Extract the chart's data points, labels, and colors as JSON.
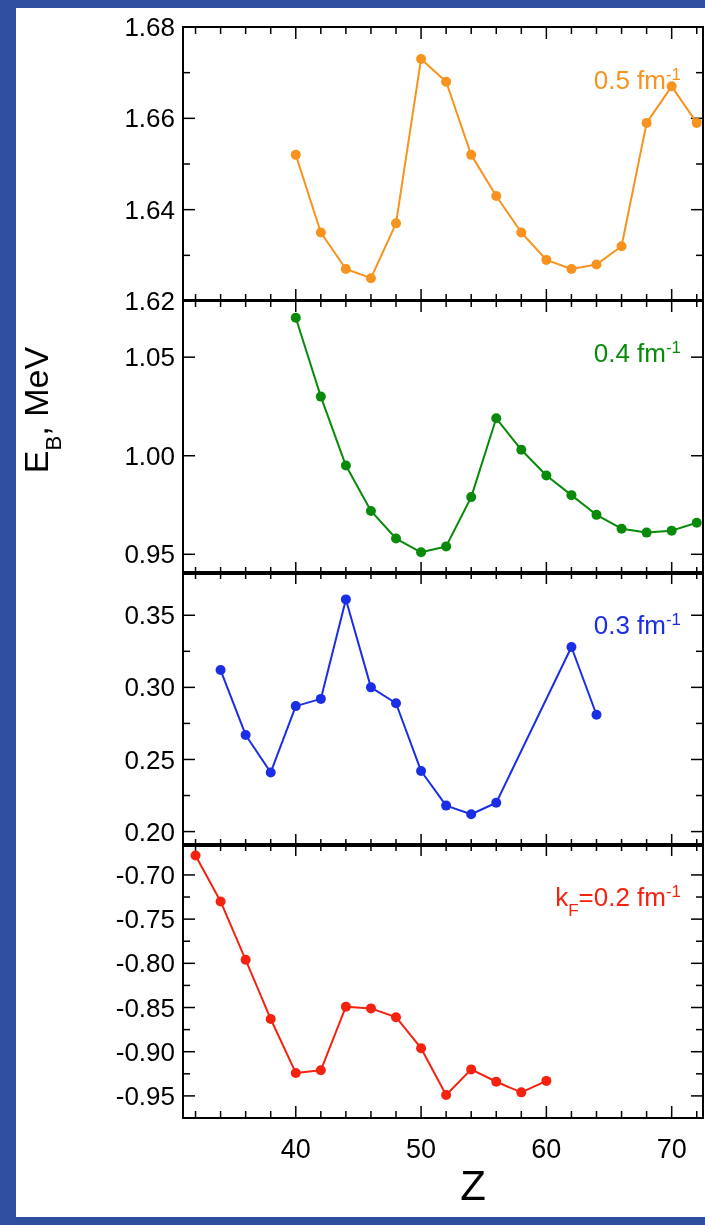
{
  "chart_data": [
    {
      "type": "line",
      "marker": "circle",
      "tick_labels": "y",
      "xlim": [
        31,
        72.5
      ],
      "ylim": [
        1.62,
        1.68
      ],
      "xticks": [
        {
          "value": 32,
          "label": null
        },
        {
          "value": 34,
          "label": null
        },
        {
          "value": 36,
          "label": null
        },
        {
          "value": 38,
          "label": null
        },
        40,
        {
          "value": 42,
          "label": null
        },
        {
          "value": 44,
          "label": null
        },
        {
          "value": 46,
          "label": null
        },
        {
          "value": 48,
          "label": null
        },
        50,
        {
          "value": 52,
          "label": null
        },
        {
          "value": 54,
          "label": null
        },
        {
          "value": 56,
          "label": null
        },
        {
          "value": 58,
          "label": null
        },
        60,
        {
          "value": 62,
          "label": null
        },
        {
          "value": 64,
          "label": null
        },
        {
          "value": 66,
          "label": null
        },
        {
          "value": 68,
          "label": null
        },
        70,
        {
          "value": 72,
          "label": null
        }
      ],
      "yticks": [
        1.62,
        {
          "value": 1.63,
          "label": null
        },
        1.64,
        {
          "value": 1.65,
          "label": null
        },
        1.66,
        {
          "value": 1.67,
          "label": null
        },
        1.68
      ],
      "series": [
        {
          "name": "0.5 fm$^{-1}$",
          "color": "#f7931e",
          "x": [
            40,
            42,
            44,
            46,
            48,
            50,
            52,
            54,
            56,
            58,
            60,
            62,
            64,
            66,
            68,
            70,
            72
          ],
          "values": [
            1.652,
            1.635,
            1.627,
            1.625,
            1.637,
            1.673,
            1.668,
            1.652,
            1.643,
            1.635,
            1.629,
            1.627,
            1.628,
            1.632,
            1.659,
            1.667,
            1.659
          ]
        }
      ]
    },
    {
      "type": "line",
      "marker": "circle",
      "tick_labels": "y",
      "ylabel": "E$_{B}$, MeV",
      "xlim": [
        31,
        72.5
      ],
      "ylim": [
        0.94,
        1.079
      ],
      "xticks": [
        {
          "value": 32,
          "label": null
        },
        {
          "value": 34,
          "label": null
        },
        {
          "value": 36,
          "label": null
        },
        {
          "value": 38,
          "label": null
        },
        40,
        {
          "value": 42,
          "label": null
        },
        {
          "value": 44,
          "label": null
        },
        {
          "value": 46,
          "label": null
        },
        {
          "value": 48,
          "label": null
        },
        50,
        {
          "value": 52,
          "label": null
        },
        {
          "value": 54,
          "label": null
        },
        {
          "value": 56,
          "label": null
        },
        {
          "value": 58,
          "label": null
        },
        60,
        {
          "value": 62,
          "label": null
        },
        {
          "value": 64,
          "label": null
        },
        {
          "value": 66,
          "label": null
        },
        {
          "value": 68,
          "label": null
        },
        70,
        {
          "value": 72,
          "label": null
        }
      ],
      "yticks": [
        {
          "value": 0.95,
          "label": "0.95"
        },
        {
          "value": 1,
          "label": "1.00"
        },
        {
          "value": 1.05,
          "label": "1.05"
        }
      ],
      "series": [
        {
          "name": "0.4 fm$^{-1}$",
          "color": "#0a8a0a",
          "x": [
            40,
            42,
            44,
            46,
            48,
            50,
            52,
            54,
            56,
            58,
            60,
            62,
            64,
            66,
            68,
            70,
            72
          ],
          "values": [
            1.07,
            1.03,
            0.995,
            0.972,
            0.958,
            0.951,
            0.954,
            0.979,
            1.019,
            1.003,
            0.99,
            0.98,
            0.97,
            0.963,
            0.961,
            0.962,
            0.966
          ]
        }
      ]
    },
    {
      "type": "line",
      "marker": "circle",
      "tick_labels": "y",
      "xlim": [
        31,
        72.5
      ],
      "ylim": [
        0.19,
        0.38
      ],
      "xticks": [
        {
          "value": 32,
          "label": null
        },
        {
          "value": 34,
          "label": null
        },
        {
          "value": 36,
          "label": null
        },
        {
          "value": 38,
          "label": null
        },
        40,
        {
          "value": 42,
          "label": null
        },
        {
          "value": 44,
          "label": null
        },
        {
          "value": 46,
          "label": null
        },
        {
          "value": 48,
          "label": null
        },
        50,
        {
          "value": 52,
          "label": null
        },
        {
          "value": 54,
          "label": null
        },
        {
          "value": 56,
          "label": null
        },
        {
          "value": 58,
          "label": null
        },
        60,
        {
          "value": 62,
          "label": null
        },
        {
          "value": 64,
          "label": null
        },
        {
          "value": 66,
          "label": null
        },
        {
          "value": 68,
          "label": null
        },
        70,
        {
          "value": 72,
          "label": null
        }
      ],
      "yticks": [
        {
          "value": 0.2,
          "label": "0.20"
        },
        {
          "value": 0.225,
          "label": null
        },
        {
          "value": 0.25,
          "label": "0.25"
        },
        {
          "value": 0.275,
          "label": null
        },
        {
          "value": 0.3,
          "label": "0.30"
        },
        {
          "value": 0.325,
          "label": null
        },
        {
          "value": 0.35,
          "label": "0.35"
        }
      ],
      "series": [
        {
          "name": "0.3 fm$^{-1}$",
          "color": "#1a2ee6",
          "x": [
            34,
            36,
            38,
            40,
            42,
            44,
            46,
            48,
            50,
            52,
            54,
            56,
            62,
            64
          ],
          "values": [
            0.312,
            0.267,
            0.241,
            0.287,
            0.292,
            0.361,
            0.3,
            0.289,
            0.242,
            0.218,
            0.212,
            0.22,
            0.328,
            0.281
          ]
        }
      ]
    },
    {
      "type": "line",
      "marker": "circle",
      "xlabel": "Z",
      "xlim": [
        31,
        72.5
      ],
      "ylim": [
        -0.975,
        -0.665
      ],
      "xticks": [
        {
          "value": 32,
          "label": null
        },
        {
          "value": 34,
          "label": null
        },
        {
          "value": 36,
          "label": null
        },
        {
          "value": 38,
          "label": null
        },
        40,
        {
          "value": 42,
          "label": null
        },
        {
          "value": 44,
          "label": null
        },
        {
          "value": 46,
          "label": null
        },
        {
          "value": 48,
          "label": null
        },
        50,
        {
          "value": 52,
          "label": null
        },
        {
          "value": 54,
          "label": null
        },
        {
          "value": 56,
          "label": null
        },
        {
          "value": 58,
          "label": null
        },
        60,
        {
          "value": 62,
          "label": null
        },
        {
          "value": 64,
          "label": null
        },
        {
          "value": 66,
          "label": null
        },
        {
          "value": 68,
          "label": null
        },
        70,
        {
          "value": 72,
          "label": null
        }
      ],
      "yticks": [
        {
          "value": -0.95,
          "label": "-0.95"
        },
        {
          "value": -0.925,
          "label": null
        },
        {
          "value": -0.9,
          "label": "-0.90"
        },
        {
          "value": -0.875,
          "label": null
        },
        {
          "value": -0.85,
          "label": "-0.85"
        },
        {
          "value": -0.825,
          "label": null
        },
        {
          "value": -0.8,
          "label": "-0.80"
        },
        {
          "value": -0.775,
          "label": null
        },
        {
          "value": -0.75,
          "label": "-0.75"
        },
        {
          "value": -0.725,
          "label": null
        },
        {
          "value": -0.7,
          "label": "-0.70"
        }
      ],
      "series": [
        {
          "name": "k$_{F}$=0.2 fm$^{-1}$",
          "color": "#f5220f",
          "x": [
            32,
            34,
            36,
            38,
            40,
            42,
            44,
            46,
            48,
            50,
            52,
            54,
            56,
            58,
            60
          ],
          "values": [
            -0.678,
            -0.73,
            -0.796,
            -0.863,
            -0.924,
            -0.921,
            -0.849,
            -0.851,
            -0.861,
            -0.896,
            -0.949,
            -0.92,
            -0.934,
            -0.946,
            -0.933
          ]
        }
      ]
    }
  ]
}
